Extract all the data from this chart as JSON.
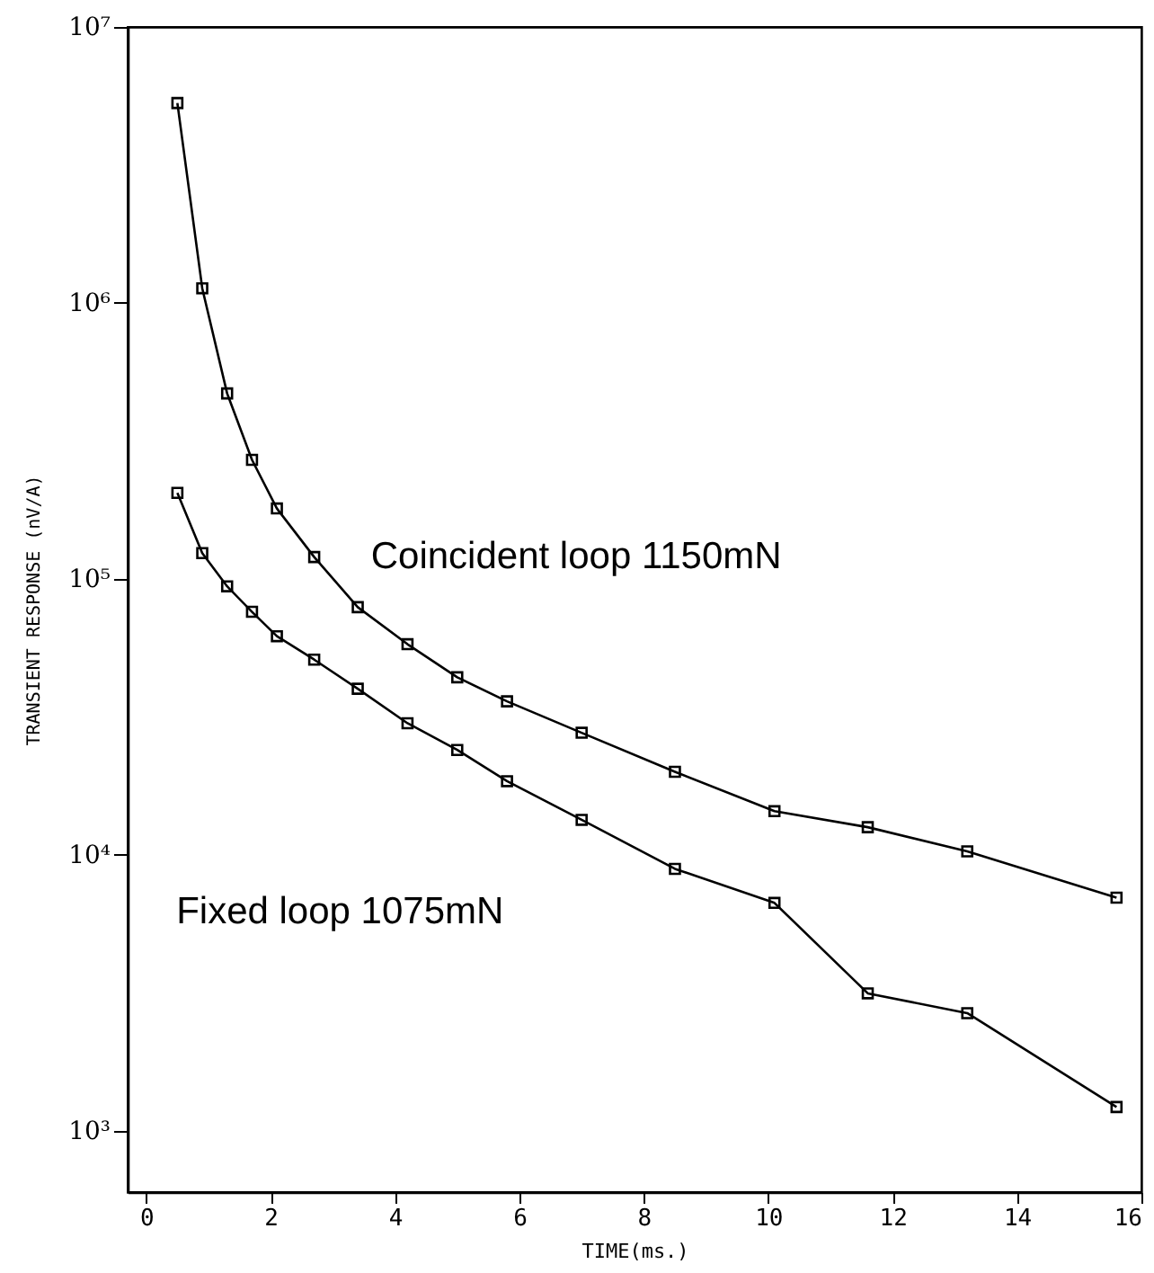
{
  "chart_data": {
    "type": "line",
    "xlabel": "TIME(ms.)",
    "ylabel": "TRANSIENT RESPONSE (nV/A)",
    "log": "y",
    "grid": false,
    "marker": "square",
    "line_style": "solid",
    "xlim": [
      -0.3,
      16
    ],
    "xticks": [
      0,
      2,
      4,
      6,
      8,
      10,
      12,
      14,
      16
    ],
    "ylim": [
      600,
      10000000
    ],
    "yticks": [
      {
        "value": 1000,
        "label": "10³"
      },
      {
        "value": 10000,
        "label": "10⁴"
      },
      {
        "value": 100000,
        "label": "10⁵"
      },
      {
        "value": 1000000,
        "label": "10⁶"
      },
      {
        "value": 10000000,
        "label": "10⁷"
      }
    ],
    "x": [
      0.5,
      0.9,
      1.3,
      1.7,
      2.1,
      2.7,
      3.4,
      4.2,
      5.0,
      5.8,
      7.0,
      8.5,
      10.1,
      11.6,
      13.2,
      15.6
    ],
    "series": [
      {
        "name": "Coincident loop   1150mN",
        "color": "#000000",
        "values": [
          5300000,
          1130000,
          470000,
          270000,
          180000,
          120000,
          79000,
          58000,
          44000,
          36000,
          27700,
          20000,
          14400,
          12600,
          10300,
          7000
        ]
      },
      {
        "name": "Fixed loop   1075mN",
        "color": "#000000",
        "values": [
          205000,
          124000,
          94000,
          76000,
          62000,
          51000,
          40000,
          30000,
          24000,
          18500,
          13400,
          8900,
          6700,
          3150,
          2670,
          1220
        ]
      }
    ]
  }
}
